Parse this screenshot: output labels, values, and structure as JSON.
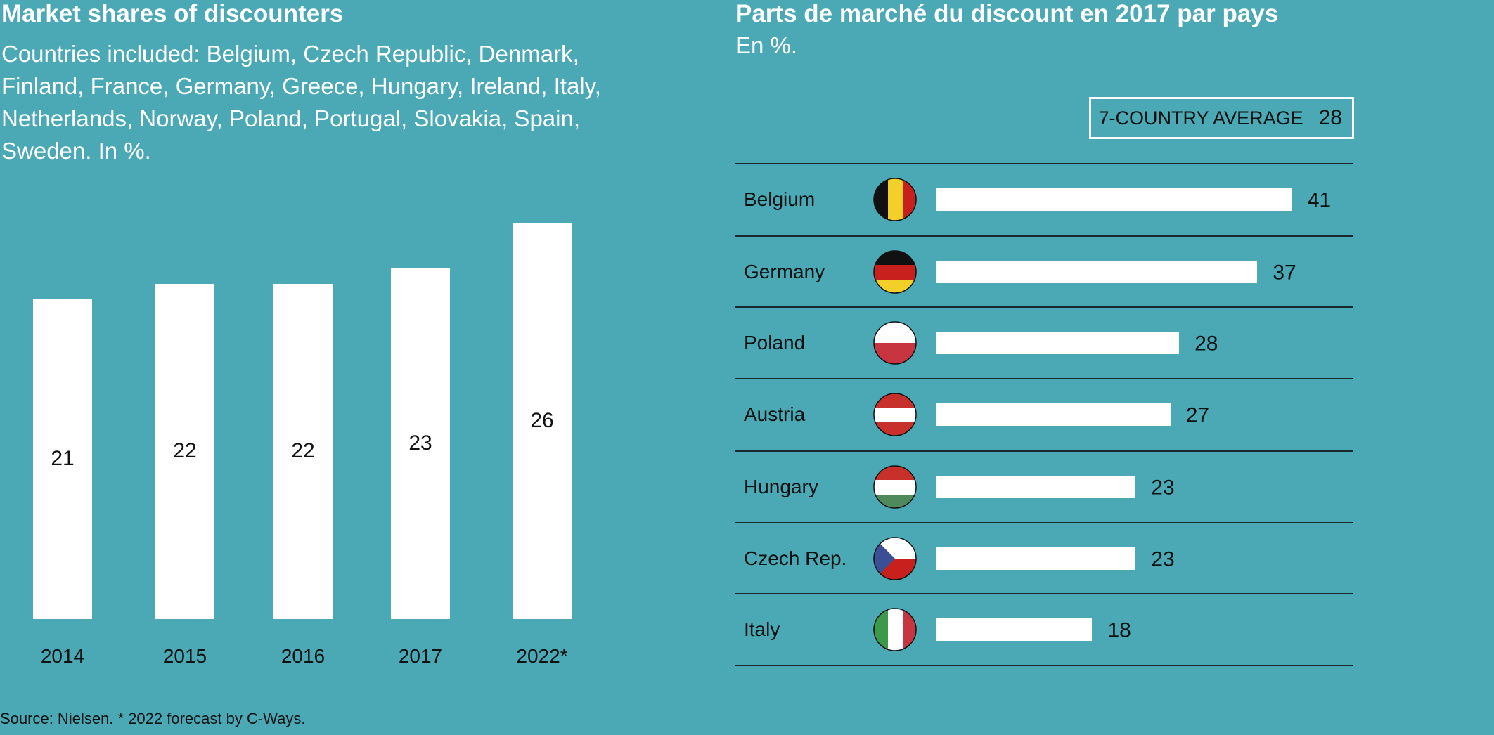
{
  "chart_data": [
    {
      "type": "bar",
      "title": "Market shares of discounters",
      "subtitle": "Countries included: Belgium, Czech Republic, Denmark, Finland, France, Germany, Greece, Hungary, Ireland, Italy, Netherlands, Norway, Poland, Portugal, Slovakia, Spain, Sweden. In %.",
      "categories": [
        "2014",
        "2015",
        "2016",
        "2017",
        "2022*"
      ],
      "values": [
        21,
        22,
        22,
        23,
        26
      ],
      "source": "Source: Nielsen. * 2022 forecast by C-Ways.",
      "ylim": [
        0,
        30
      ]
    },
    {
      "type": "bar",
      "orientation": "horizontal",
      "title": "Parts de marché du discount en 2017 par pays",
      "subtitle": "En %.",
      "average_label": "7-COUNTRY AVERAGE",
      "average_value": "28",
      "categories": [
        "Belgium",
        "Germany",
        "Poland",
        "Austria",
        "Hungary",
        "Czech Rep.",
        "Italy"
      ],
      "flags": [
        "belgium-flag",
        "germany-flag",
        "poland-flag",
        "austria-flag",
        "hungary-flag",
        "czech-flag",
        "italy-flag"
      ],
      "values": [
        41,
        37,
        28,
        27,
        23,
        23,
        18
      ]
    }
  ],
  "colors": {
    "background": "#4ba8b5",
    "bar": "#ffffff"
  }
}
